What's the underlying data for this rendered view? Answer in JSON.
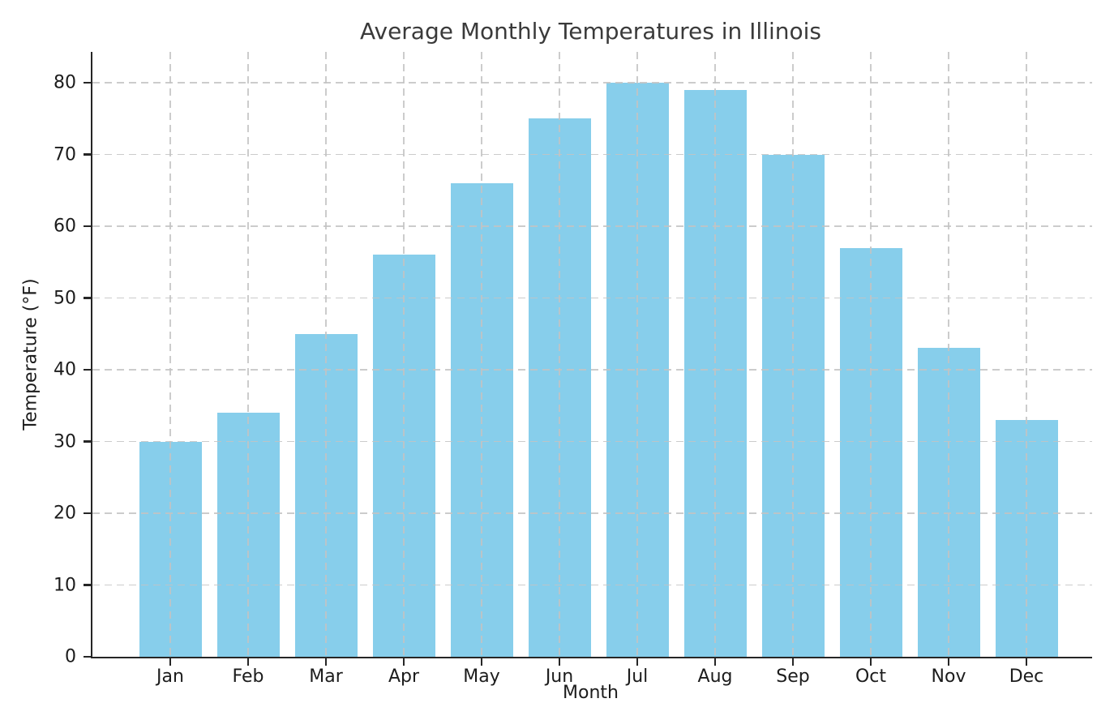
{
  "chart_data": {
    "type": "bar",
    "title": "Average Monthly Temperatures in Illinois",
    "xlabel": "Month",
    "ylabel": "Temperature (°F)",
    "categories": [
      "Jan",
      "Feb",
      "Mar",
      "Apr",
      "May",
      "Jun",
      "Jul",
      "Aug",
      "Sep",
      "Oct",
      "Nov",
      "Dec"
    ],
    "values": [
      30,
      34,
      45,
      56,
      66,
      75,
      80,
      79,
      70,
      57,
      43,
      33
    ],
    "ylim": [
      0,
      84
    ],
    "yticks": [
      0,
      10,
      20,
      30,
      40,
      50,
      60,
      70,
      80
    ],
    "bar_color": "#87CEEB",
    "grid": "dashed",
    "grid_color": "#cccccc",
    "legend_position": "none",
    "background_color": "#ffffff"
  }
}
